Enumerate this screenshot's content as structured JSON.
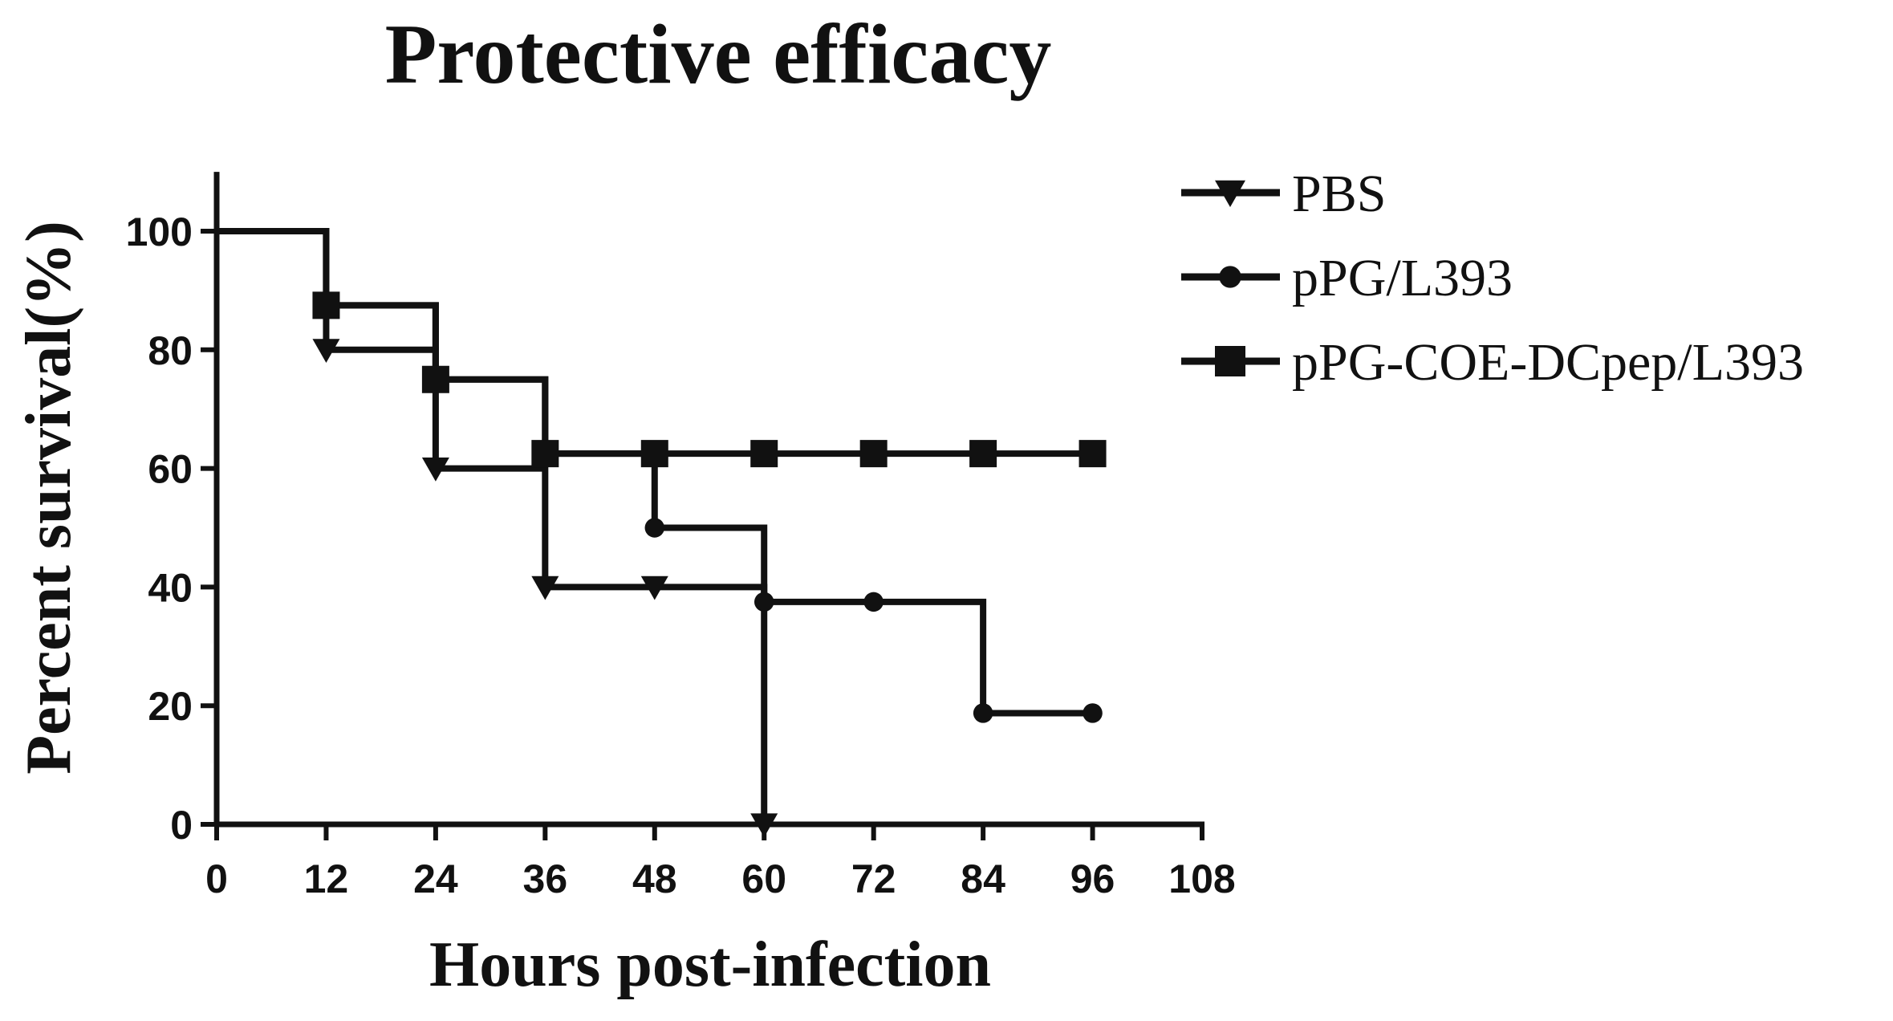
{
  "chart_data": {
    "type": "line",
    "step": true,
    "title": "Protective efficacy",
    "xlabel": "Hours post-infection",
    "ylabel": "Percent survival(%)",
    "xlim": [
      0,
      108
    ],
    "ylim": [
      0,
      110
    ],
    "xticks": [
      0,
      12,
      24,
      36,
      48,
      60,
      72,
      84,
      96,
      108
    ],
    "yticks": [
      0,
      20,
      40,
      60,
      80,
      100
    ],
    "grid": false,
    "legend_position": "top-right",
    "series": [
      {
        "name": "PBS",
        "marker": "triangle-down",
        "color": "#111111",
        "x": [
          0,
          12,
          24,
          36,
          48,
          60
        ],
        "y": [
          100,
          80,
          60,
          40,
          40,
          0
        ],
        "markers": [
          [
            12,
            80
          ],
          [
            24,
            60
          ],
          [
            36,
            40
          ],
          [
            48,
            40
          ],
          [
            60,
            0
          ]
        ]
      },
      {
        "name": "pPG/L393",
        "marker": "circle",
        "color": "#111111",
        "x": [
          0,
          12,
          24,
          36,
          48,
          60,
          72,
          84,
          96
        ],
        "y": [
          100,
          87.5,
          75,
          62.5,
          50,
          37.5,
          37.5,
          18.75,
          18.75
        ],
        "markers": [
          [
            48,
            50
          ],
          [
            60,
            37.5
          ],
          [
            72,
            37.5
          ],
          [
            84,
            18.75
          ],
          [
            96,
            18.75
          ]
        ]
      },
      {
        "name": "pPG-COE-DCpep/L393",
        "marker": "square",
        "color": "#111111",
        "x": [
          0,
          12,
          24,
          36,
          48,
          60,
          72,
          84,
          96
        ],
        "y": [
          100,
          87.5,
          75,
          62.5,
          62.5,
          62.5,
          62.5,
          62.5,
          62.5
        ],
        "markers": [
          [
            12,
            87.5
          ],
          [
            24,
            75
          ],
          [
            36,
            62.5
          ],
          [
            48,
            62.5
          ],
          [
            60,
            62.5
          ],
          [
            72,
            62.5
          ],
          [
            84,
            62.5
          ],
          [
            96,
            62.5
          ]
        ]
      }
    ]
  }
}
